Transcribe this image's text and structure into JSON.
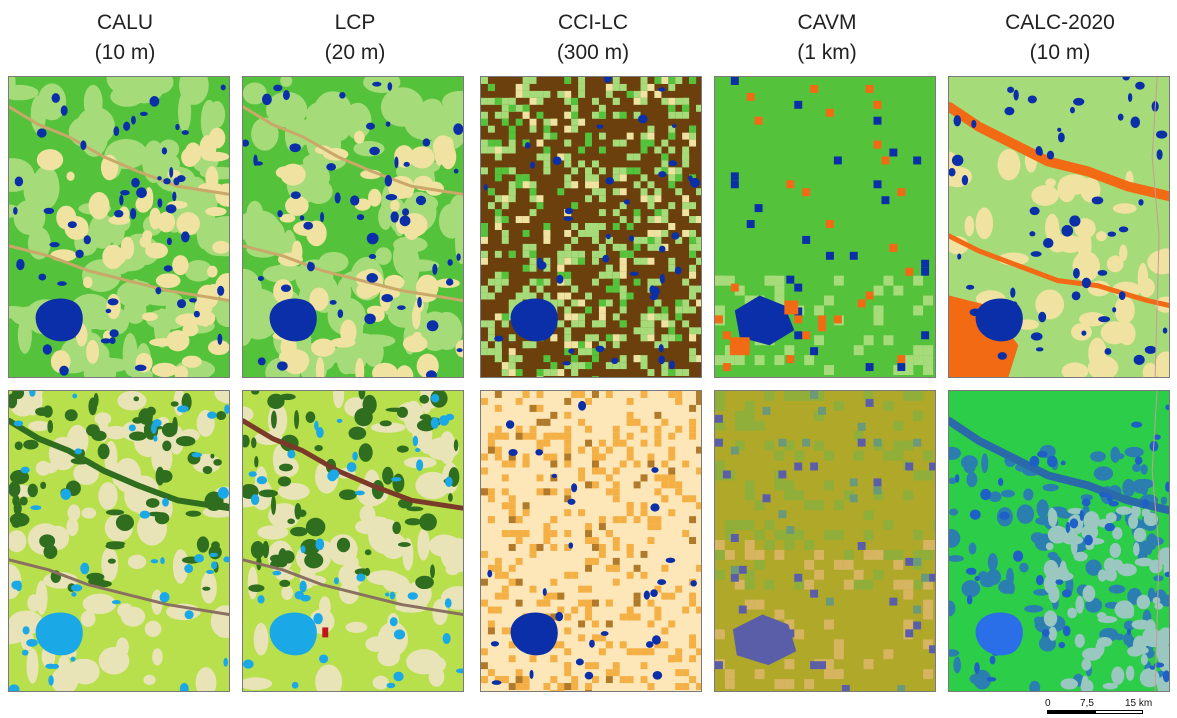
{
  "columns": [
    {
      "name": "CALU",
      "resolution": "(10 m)"
    },
    {
      "name": "LCP",
      "resolution": "(20 m)"
    },
    {
      "name": "CCI-LC",
      "resolution": "(300 m)"
    },
    {
      "name": "CAVM",
      "resolution": "(1 km)"
    },
    {
      "name": "CALC-2020",
      "resolution": "(10 m)"
    }
  ],
  "scale_bar": {
    "labels": [
      "0",
      "7,5",
      "15 km"
    ]
  },
  "colors": {
    "water": "#0b2fa8",
    "lightwater": "#1aa8e6",
    "green": "#54c23a",
    "lightgreen": "#a6db7a",
    "brown": "#6b400c",
    "orange": "#f26a14",
    "beige": "#f0e2a0",
    "olive": "#b0a828",
    "darkgreen": "#2f6e1e",
    "yellowgreen": "#b8e04c",
    "peach": "#fde6b8",
    "amber": "#f4b044",
    "teal": "#2fb89a",
    "purple": "#5a5ea8"
  }
}
